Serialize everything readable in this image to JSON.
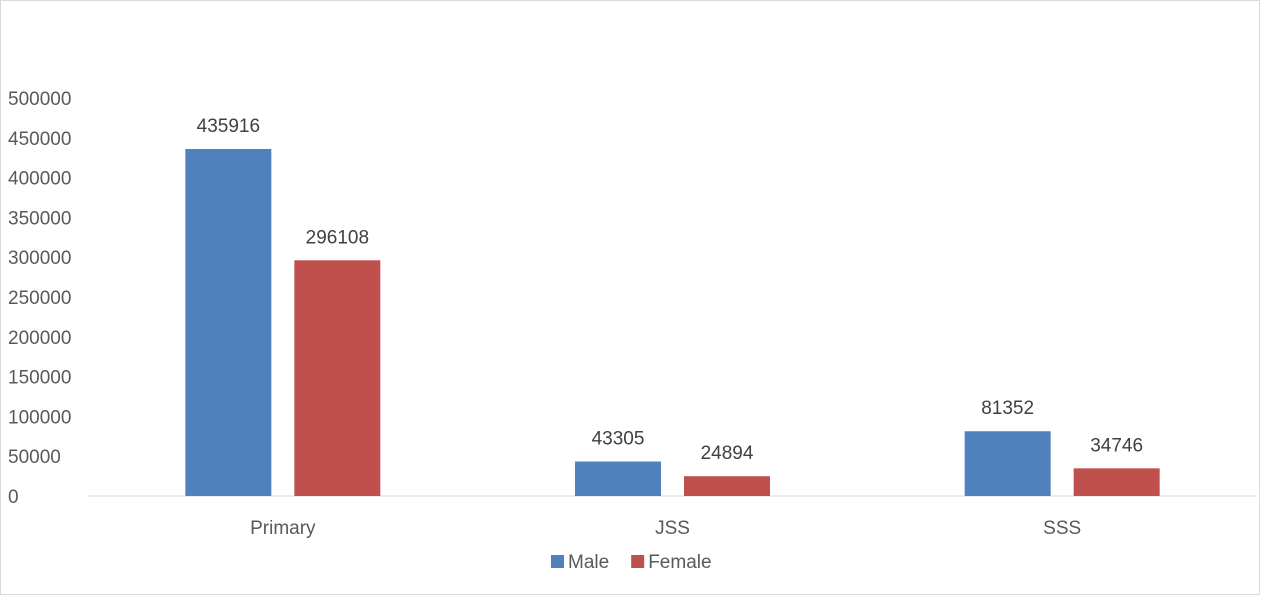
{
  "chart_data": {
    "type": "bar",
    "categories": [
      "Primary",
      "JSS",
      "SSS"
    ],
    "series": [
      {
        "name": "Male",
        "values": [
          435916,
          43305,
          81352
        ],
        "color": "#4f81bd"
      },
      {
        "name": "Female",
        "values": [
          296108,
          24894,
          34746
        ],
        "color": "#c0504d"
      }
    ],
    "ylim": [
      0,
      500000
    ],
    "yticks": [
      0,
      50000,
      100000,
      150000,
      200000,
      250000,
      300000,
      350000,
      400000,
      450000,
      500000
    ],
    "grid": false,
    "legend": "bottom-center",
    "data_labels": true
  }
}
